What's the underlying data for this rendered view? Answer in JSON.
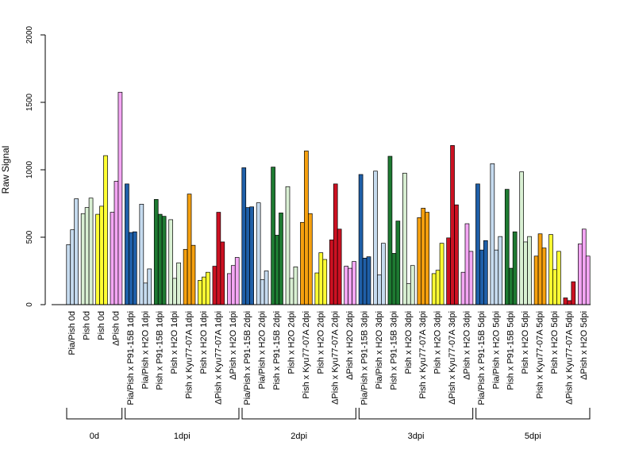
{
  "chart_data": {
    "type": "bar",
    "ylabel": "Raw Signal",
    "xlabel": "",
    "ylim": [
      0,
      2000
    ],
    "yticks": [
      0,
      500,
      1000,
      1500,
      2000
    ],
    "colors": {
      "light_blue": "#c6dbef",
      "dark_blue": "#1f5fa8",
      "light_green": "#d9f0d3",
      "dark_green": "#1e7a32",
      "yellow": "#ffff33",
      "orange": "#f5a00f",
      "red": "#cc1122",
      "pink": "#f4a6f4"
    },
    "categories": [
      {
        "label": "Pia/Pish 0d",
        "color": "light_blue",
        "values": [
          445,
          555,
          785
        ]
      },
      {
        "label": "Pish 0d",
        "color": "light_green",
        "values": [
          675,
          720,
          790
        ]
      },
      {
        "label": "Pish 0d",
        "color": "yellow",
        "values": [
          670,
          730,
          1105
        ]
      },
      {
        "label": "ΔPish 0d",
        "color": "pink",
        "values": [
          685,
          915,
          1575
        ]
      },
      {
        "label": "Pia/Pish x P91-15B 1dpi",
        "color": "dark_blue",
        "values": [
          895,
          535,
          540
        ]
      },
      {
        "label": "Pia/Pish x H2O 1dpi",
        "color": "light_blue",
        "values": [
          745,
          160,
          265
        ]
      },
      {
        "label": "Pish x P91-15B 1dpi",
        "color": "dark_green",
        "values": [
          780,
          670,
          655
        ]
      },
      {
        "label": "Pish x H2O 1dpi",
        "color": "light_green",
        "values": [
          630,
          195,
          310
        ]
      },
      {
        "label": "Pish x Kyu77-07A 1dpi",
        "color": "orange",
        "values": [
          410,
          820,
          440
        ]
      },
      {
        "label": "Pish x H2O 1dpi",
        "color": "yellow",
        "values": [
          180,
          205,
          240
        ]
      },
      {
        "label": "ΔPish x Kyu77-07A 1dpi",
        "color": "red",
        "values": [
          285,
          685,
          465
        ]
      },
      {
        "label": "ΔPish x H2O 1dpi",
        "color": "pink",
        "values": [
          230,
          290,
          350
        ]
      },
      {
        "label": "Pia/Pish x P91-15B 2dpi",
        "color": "dark_blue",
        "values": [
          1015,
          720,
          725
        ]
      },
      {
        "label": "Pia/Pish x H2O 2dpi",
        "color": "light_blue",
        "values": [
          755,
          185,
          250
        ]
      },
      {
        "label": "Pish x P91-15B 2dpi",
        "color": "dark_green",
        "values": [
          1020,
          515,
          680
        ]
      },
      {
        "label": "Pish x H2O 2dpi",
        "color": "light_green",
        "values": [
          875,
          195,
          280
        ]
      },
      {
        "label": "Pish x Kyu77-07A 2dpi",
        "color": "orange",
        "values": [
          610,
          1140,
          675
        ]
      },
      {
        "label": "Pish x H2O 2dpi",
        "color": "yellow",
        "values": [
          235,
          385,
          335
        ]
      },
      {
        "label": "ΔPish x Kyu77-07A 2dpi",
        "color": "red",
        "values": [
          480,
          895,
          560
        ]
      },
      {
        "label": "ΔPish x H2O 2dpi",
        "color": "pink",
        "values": [
          285,
          270,
          320
        ]
      },
      {
        "label": "Pia/Pish x P91-15B 3dpi",
        "color": "dark_blue",
        "values": [
          965,
          345,
          355
        ]
      },
      {
        "label": "Pia/Pish x H2O 3dpi",
        "color": "light_blue",
        "values": [
          990,
          220,
          455
        ]
      },
      {
        "label": "Pish x P91-15B 3dpi",
        "color": "dark_green",
        "values": [
          1100,
          380,
          620
        ]
      },
      {
        "label": "Pish x H2O 3dpi",
        "color": "light_green",
        "values": [
          975,
          155,
          290
        ]
      },
      {
        "label": "Pish x Kyu77-07A 3dpi",
        "color": "orange",
        "values": [
          645,
          715,
          685
        ]
      },
      {
        "label": "Pish x H2O 3dpi",
        "color": "yellow",
        "values": [
          230,
          255,
          455
        ]
      },
      {
        "label": "ΔPish x Kyu77-07A 3dpi",
        "color": "red",
        "values": [
          495,
          1180,
          740
        ]
      },
      {
        "label": "ΔPish x H2O 3dpi",
        "color": "pink",
        "values": [
          240,
          600,
          395
        ]
      },
      {
        "label": "Pia/Pish x P91-15B 5dpi",
        "color": "dark_blue",
        "values": [
          895,
          405,
          475
        ]
      },
      {
        "label": "Pia/Pish x H2O 5dpi",
        "color": "light_blue",
        "values": [
          1045,
          405,
          505
        ]
      },
      {
        "label": "Pish x P91-15B 5dpi",
        "color": "dark_green",
        "values": [
          855,
          270,
          540
        ]
      },
      {
        "label": "Pish x H2O 5dpi",
        "color": "light_green",
        "values": [
          985,
          465,
          505
        ]
      },
      {
        "label": "Pish x Kyu77-07A 5dpi",
        "color": "orange",
        "values": [
          360,
          525,
          420
        ]
      },
      {
        "label": "Pish x H2O 5dpi",
        "color": "yellow",
        "values": [
          520,
          260,
          395
        ]
      },
      {
        "label": "ΔPish x Kyu77-07A 5dpi",
        "color": "red",
        "values": [
          50,
          30,
          170
        ]
      },
      {
        "label": "ΔPish x H2O 5dpi",
        "color": "pink",
        "values": [
          450,
          560,
          360
        ]
      }
    ],
    "groups": [
      {
        "label": "0d",
        "start": 0,
        "end": 3
      },
      {
        "label": "1dpi",
        "start": 4,
        "end": 11
      },
      {
        "label": "2dpi",
        "start": 12,
        "end": 19
      },
      {
        "label": "3dpi",
        "start": 20,
        "end": 27
      },
      {
        "label": "5dpi",
        "start": 28,
        "end": 35
      }
    ]
  }
}
